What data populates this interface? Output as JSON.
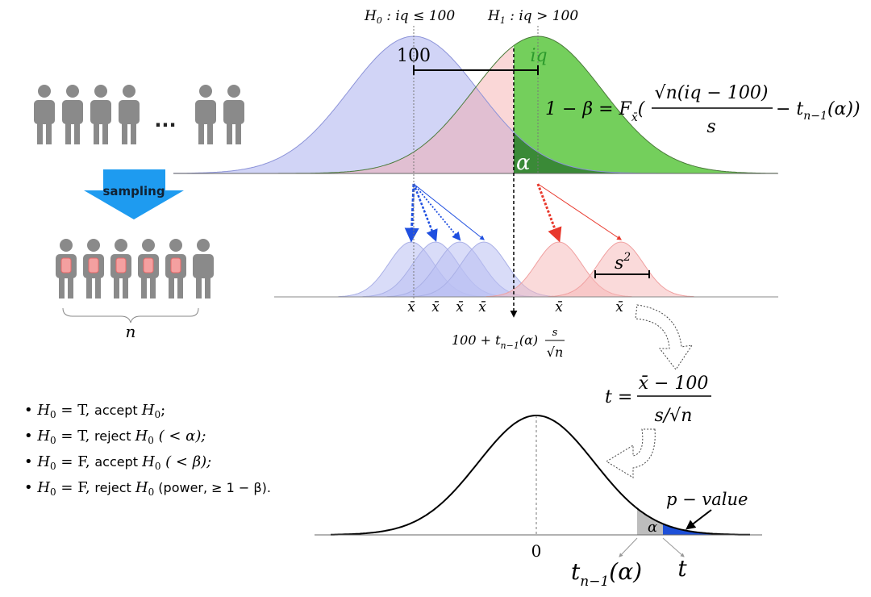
{
  "h0_label": [
    "H",
    "0",
    " : iq ≤ 100"
  ],
  "h1_label": [
    "H",
    "1",
    " : iq > 100"
  ],
  "mean_label": "100",
  "iq_label": "iq",
  "power_formula": {
    "lhs": "1 − β  = F",
    "lhs_sub": "x̄",
    "open": "(",
    "numerator": "√n(iq − 100)",
    "denominator": "s",
    "tail": "− t",
    "tail_sub": "n−1",
    "tail_end": "(α))"
  },
  "alpha_top": "α",
  "ellipsis": "...",
  "sampling_label": "sampling",
  "sample_size_label": "n",
  "sample_means": [
    "x̄",
    "x̄",
    "x̄",
    "x̄",
    "x̄",
    "x̄"
  ],
  "variance_label": {
    "base": "s",
    "sup": "2"
  },
  "critical_value": {
    "lead": "100 + t",
    "sub": "n−1",
    "mid": "(α)",
    "numerator": "s",
    "denominator": "√n"
  },
  "t_statistic": {
    "lhs": "t =",
    "numerator": "x̄ − 100",
    "denominator": "s/√n"
  },
  "zero_label": "0",
  "alpha_bottom": "α",
  "p_value_label": "p − value",
  "critical_t": {
    "base": "t",
    "sub": "n−1",
    "end": "(α)"
  },
  "t_label": "t",
  "outcomes": [
    [
      "H",
      "0",
      " = T,  ",
      "accept ",
      "H",
      "0",
      ";"
    ],
    [
      "H",
      "0",
      " = T,  ",
      "reject  ",
      "H",
      "0",
      " ( < α);"
    ],
    [
      "H",
      "0",
      " = F,  ",
      "accept ",
      "H",
      "0",
      " ( < β);"
    ],
    [
      "H",
      "0",
      " = F,  ",
      "reject  ",
      "H",
      "0",
      " (power,  ≥ 1 − β)."
    ]
  ]
}
